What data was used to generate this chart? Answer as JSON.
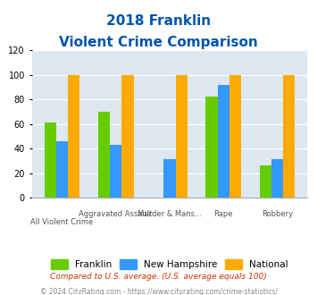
{
  "title_line1": "2018 Franklin",
  "title_line2": "Violent Crime Comparison",
  "categories": [
    "All Violent Crime",
    "Aggravated Assault",
    "Murder & Mans...",
    "Rape",
    "Robbery"
  ],
  "franklin": [
    61,
    70,
    0,
    82,
    26
  ],
  "new_hampshire": [
    46,
    43,
    31,
    92,
    31
  ],
  "national": [
    100,
    100,
    100,
    100,
    100
  ],
  "franklin_color": "#66cc00",
  "nh_color": "#3399ff",
  "national_color": "#ffaa00",
  "bg_color": "#dde8f0",
  "ylim": [
    0,
    120
  ],
  "yticks": [
    0,
    20,
    40,
    60,
    80,
    100,
    120
  ],
  "title_color": "#0055aa",
  "top_labels": [
    "",
    "Aggravated Assault",
    "Murder & Mans...",
    "Rape",
    "Robbery"
  ],
  "bottom_labels": [
    "All Violent Crime",
    "",
    "",
    "",
    ""
  ],
  "legend_labels": [
    "Franklin",
    "New Hampshire",
    "National"
  ],
  "footnote1": "Compared to U.S. average. (U.S. average equals 100)",
  "footnote2": "© 2024 CityRating.com - https://www.cityrating.com/crime-statistics/",
  "footnote1_color": "#cc3300",
  "footnote2_color": "#888888"
}
